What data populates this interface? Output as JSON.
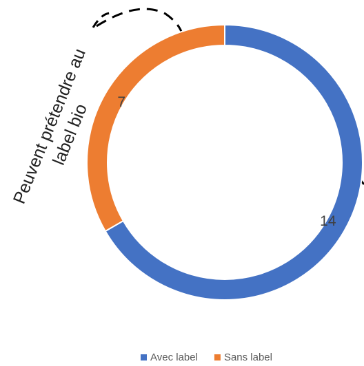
{
  "chart_data": {
    "type": "pie",
    "annotation": [
      "Peuvent prétendre au",
      "label bio"
    ],
    "categories": [
      "Avec label",
      "Sans label"
    ],
    "values": [
      14,
      7
    ],
    "colors": [
      "#4472c4",
      "#ed7d31"
    ]
  }
}
